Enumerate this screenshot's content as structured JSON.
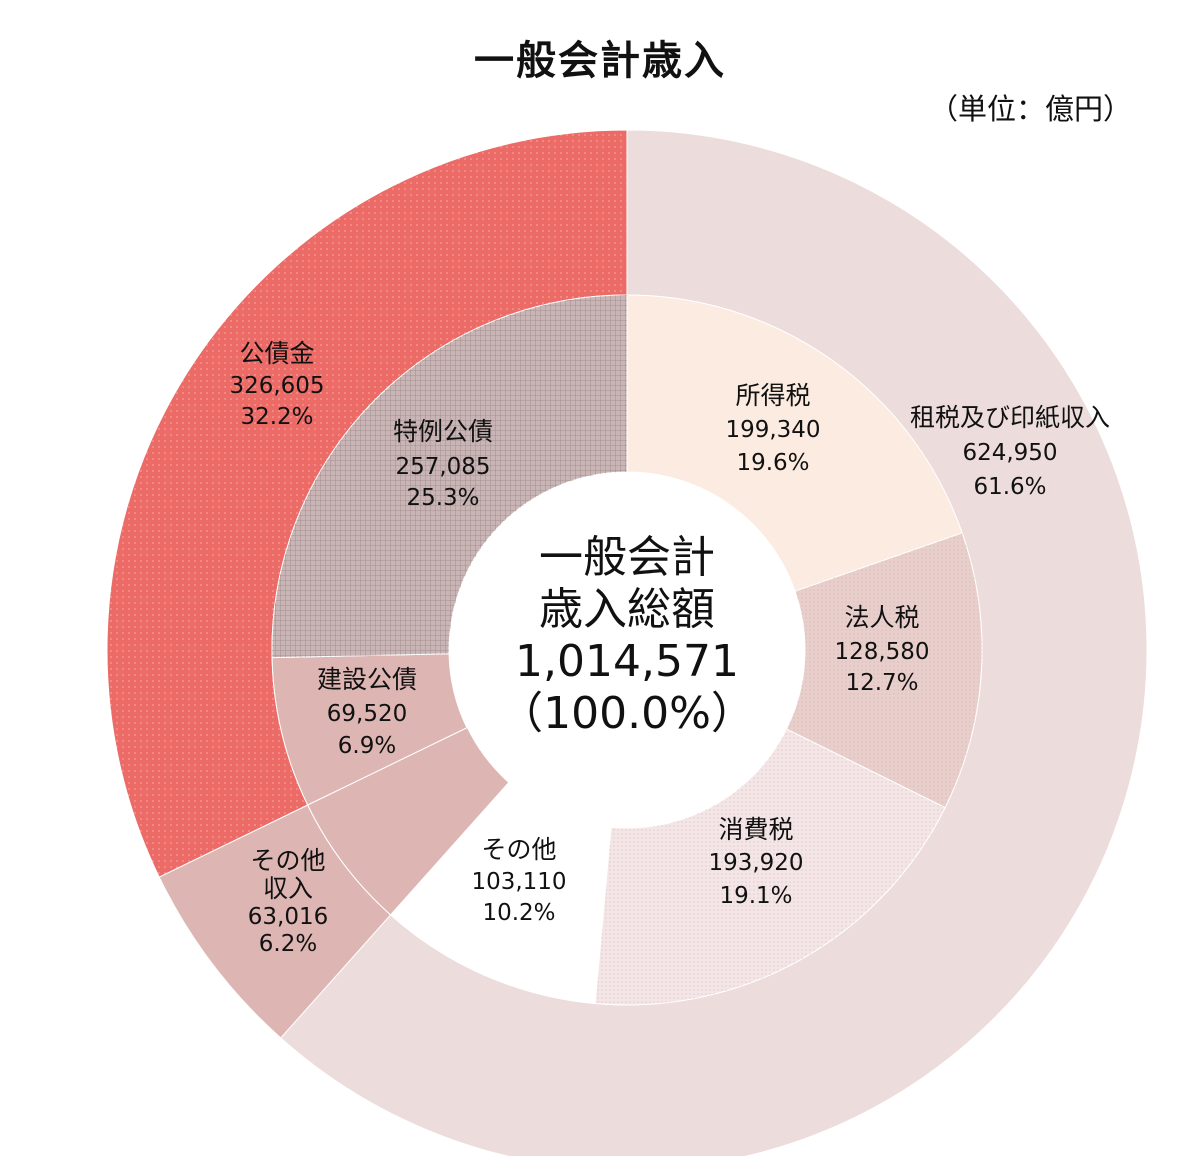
{
  "title": "一般会計歳入",
  "unit": "（単位：億円）",
  "center": {
    "line1": "一般会計",
    "line2": "歳入総額",
    "total": "1,014,571",
    "percent": "（100.0%）"
  },
  "colors": {
    "tax_outer": "#ecdcdb",
    "bond_outer": "#ec6b67",
    "other_outer": "#ddb6b3",
    "income_tax": "#fbebe0",
    "corporate_tax": "#e8cfcc",
    "consumption_tax": "#f4e6e6",
    "other_tax": "#ffffff",
    "deficit_bond": "#c9b5b5",
    "construction_bond": "#ddb6b3"
  },
  "chart_data": {
    "type": "pie",
    "variant": "nested-donut",
    "title": "一般会計歳入",
    "unit": "億円",
    "total": 1014571,
    "outer_ring": [
      {
        "key": "tax",
        "name": "租税及び印紙収入",
        "value": 624950,
        "value_label": "624,950",
        "percent": 61.6,
        "percent_label": "61.6%"
      },
      {
        "key": "other",
        "name": "その他収入",
        "name_lines": [
          "その他",
          "収入"
        ],
        "value": 63016,
        "value_label": "63,016",
        "percent": 6.2,
        "percent_label": "6.2%"
      },
      {
        "key": "bond",
        "name": "公債金",
        "value": 326605,
        "value_label": "326,605",
        "percent": 32.2,
        "percent_label": "32.2%"
      }
    ],
    "inner_ring": [
      {
        "key": "income_tax",
        "name": "所得税",
        "value": 199340,
        "value_label": "199,340",
        "percent": 19.6,
        "percent_label": "19.6%"
      },
      {
        "key": "corporate_tax",
        "name": "法人税",
        "value": 128580,
        "value_label": "128,580",
        "percent": 12.7,
        "percent_label": "12.7%"
      },
      {
        "key": "consumption_tax",
        "name": "消費税",
        "value": 193920,
        "value_label": "193,920",
        "percent": 19.1,
        "percent_label": "19.1%"
      },
      {
        "key": "other_tax",
        "name": "その他",
        "value": 103110,
        "value_label": "103,110",
        "percent": 10.2,
        "percent_label": "10.2%"
      },
      {
        "key": "other_revenue",
        "name": "その他収入",
        "value": 63016,
        "value_label": "",
        "percent": 6.2,
        "percent_label": ""
      },
      {
        "key": "construction_bond",
        "name": "建設公債",
        "value": 69520,
        "value_label": "69,520",
        "percent": 6.9,
        "percent_label": "6.9%"
      },
      {
        "key": "deficit_bond",
        "name": "特例公債",
        "value": 257085,
        "value_label": "257,085",
        "percent": 25.3,
        "percent_label": "25.3%"
      }
    ]
  }
}
